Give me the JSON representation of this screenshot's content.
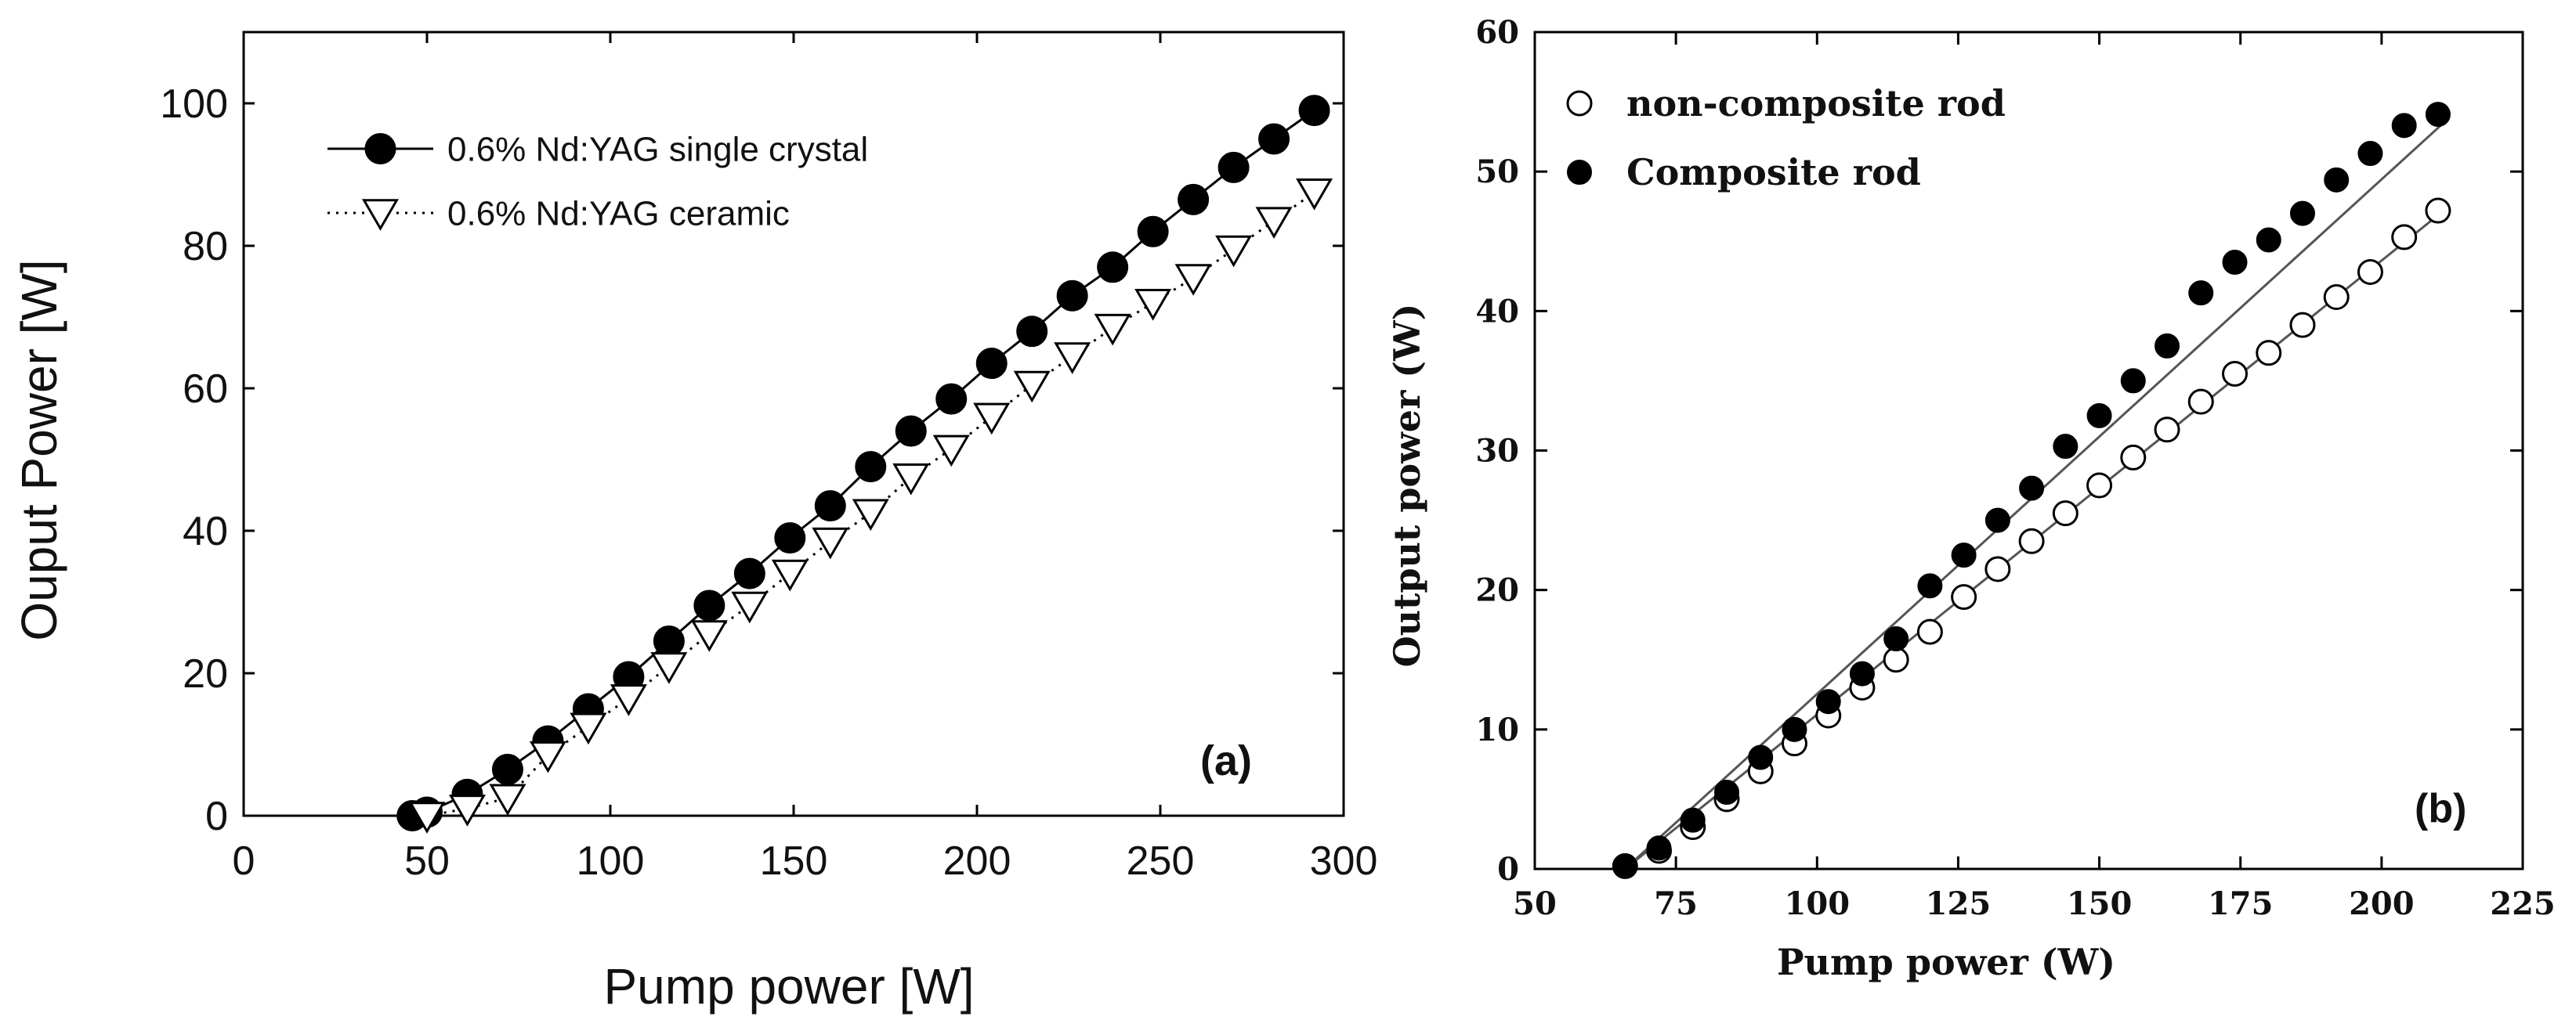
{
  "chart_data": [
    {
      "type": "line",
      "panel_label": "(a)",
      "title": "",
      "xlabel": "Pump power [W]",
      "ylabel": "Ouput Power [W]",
      "xlim": [
        0,
        300
      ],
      "ylim": [
        0,
        110
      ],
      "xticks": [
        "0",
        "50",
        "100",
        "150",
        "200",
        "250",
        "300"
      ],
      "yticks": [
        "0",
        "20",
        "40",
        "60",
        "80",
        "100"
      ],
      "grid": false,
      "legend_position": "top-left",
      "series": [
        {
          "name": "0.6% Nd:YAG single crystal",
          "marker": "filled-circle",
          "line": "solid",
          "x": [
            46,
            50,
            61,
            72,
            83,
            94,
            105,
            116,
            127,
            138,
            149,
            160,
            171,
            182,
            193,
            204,
            215,
            226,
            237,
            248,
            259,
            270,
            281,
            292
          ],
          "y": [
            0,
            0.5,
            3,
            6.5,
            10.5,
            15,
            19.5,
            24.5,
            29.5,
            34,
            39,
            43.5,
            49,
            54,
            58.5,
            63.5,
            68,
            73,
            77,
            82,
            86.5,
            91,
            95,
            99
          ]
        },
        {
          "name": "0.6% Nd:YAG ceramic",
          "marker": "open-triangle-down",
          "line": "dotted",
          "x": [
            50,
            61,
            72,
            83,
            94,
            105,
            116,
            127,
            138,
            149,
            160,
            171,
            182,
            193,
            204,
            215,
            226,
            237,
            248,
            259,
            270,
            281,
            292
          ],
          "y": [
            0,
            1,
            2.5,
            8.5,
            12.5,
            16.5,
            21,
            25.5,
            29.5,
            34,
            38.5,
            42.5,
            47.5,
            51.5,
            56,
            60.5,
            64.5,
            68.5,
            72,
            75.5,
            79.5,
            83.5,
            87.5
          ]
        }
      ]
    },
    {
      "type": "scatter",
      "panel_label": "(b)",
      "title": "",
      "xlabel": "Pump power (W)",
      "ylabel": "Output power (W)",
      "xlim": [
        50,
        225
      ],
      "ylim": [
        0,
        60
      ],
      "xticks": [
        "50",
        "75",
        "100",
        "125",
        "150",
        "175",
        "200",
        "225"
      ],
      "yticks": [
        "0",
        "10",
        "20",
        "30",
        "40",
        "50",
        "60"
      ],
      "grid": false,
      "legend_position": "top-left",
      "series": [
        {
          "name": "non-composite rod",
          "marker": "open-circle",
          "x": [
            66,
            72,
            78,
            84,
            90,
            96,
            102,
            108,
            114,
            120,
            126,
            132,
            138,
            144,
            150,
            156,
            162,
            168,
            174,
            180,
            186,
            192,
            198,
            204,
            210
          ],
          "y": [
            0.2,
            1.3,
            3,
            5,
            7,
            9,
            11,
            13,
            15,
            17,
            19.5,
            21.5,
            23.5,
            25.5,
            27.5,
            29.5,
            31.5,
            33.5,
            35.5,
            37,
            39,
            41,
            42.8,
            45.3,
            47.2
          ],
          "fit_line": {
            "x": [
              66,
              211
            ],
            "y": [
              0,
              47.2
            ]
          }
        },
        {
          "name": "Composite rod",
          "marker": "filled-circle",
          "x": [
            66,
            72,
            78,
            84,
            90,
            96,
            102,
            108,
            114,
            120,
            126,
            132,
            138,
            144,
            150,
            156,
            162,
            168,
            174,
            180,
            186,
            192,
            198,
            204,
            210
          ],
          "y": [
            0.2,
            1.5,
            3.5,
            5.5,
            8,
            10,
            12,
            14,
            16.5,
            20.3,
            22.5,
            25,
            27.3,
            30.3,
            32.5,
            35,
            37.5,
            41.3,
            43.5,
            45.1,
            47,
            49.4,
            51.3,
            53.3,
            54.1
          ],
          "fit_line": {
            "x": [
              66,
              211
            ],
            "y": [
              0,
              53.5
            ]
          }
        }
      ]
    }
  ]
}
